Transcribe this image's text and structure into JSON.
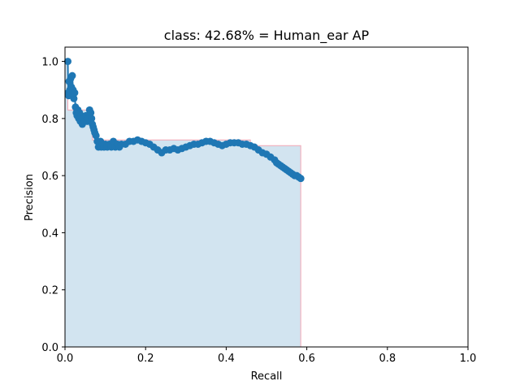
{
  "chart_data": {
    "type": "line",
    "title": "class: 42.68% = Human_ear AP",
    "xlabel": "Recall",
    "ylabel": "Precision",
    "xlim": [
      0,
      1
    ],
    "ylim": [
      0,
      1.05
    ],
    "x_ticks": [
      "0.0",
      "0.2",
      "0.4",
      "0.6",
      "0.8",
      "1.0"
    ],
    "y_ticks": [
      "0.0",
      "0.2",
      "0.4",
      "0.6",
      "0.8",
      "1.0"
    ],
    "grid": false,
    "legend": "none",
    "colors": {
      "series": "#1f77b4",
      "area_fill": "#1f77b4",
      "area_edge": "#f4a6b4",
      "frame": "#000000"
    },
    "series": [
      {
        "marker": "circle",
        "x": [
          0.007,
          0.008,
          0.009,
          0.01,
          0.012,
          0.014,
          0.016,
          0.018,
          0.02,
          0.022,
          0.024,
          0.026,
          0.028,
          0.03,
          0.032,
          0.034,
          0.036,
          0.038,
          0.04,
          0.043,
          0.046,
          0.049,
          0.052,
          0.055,
          0.058,
          0.061,
          0.064,
          0.066,
          0.068,
          0.07,
          0.072,
          0.074,
          0.077,
          0.08,
          0.083,
          0.086,
          0.088,
          0.09,
          0.093,
          0.097,
          0.1,
          0.105,
          0.11,
          0.115,
          0.12,
          0.125,
          0.13,
          0.135,
          0.14,
          0.15,
          0.16,
          0.17,
          0.18,
          0.19,
          0.2,
          0.21,
          0.22,
          0.23,
          0.24,
          0.25,
          0.26,
          0.27,
          0.28,
          0.29,
          0.3,
          0.31,
          0.32,
          0.33,
          0.34,
          0.35,
          0.36,
          0.37,
          0.38,
          0.39,
          0.4,
          0.41,
          0.42,
          0.43,
          0.44,
          0.45,
          0.46,
          0.47,
          0.48,
          0.49,
          0.5,
          0.51,
          0.52,
          0.525,
          0.53,
          0.535,
          0.54,
          0.545,
          0.55,
          0.555,
          0.56,
          0.565,
          0.57,
          0.575,
          0.58,
          0.585
        ],
        "y": [
          1.0,
          0.89,
          0.88,
          0.93,
          0.9,
          0.94,
          0.91,
          0.95,
          0.9,
          0.87,
          0.89,
          0.84,
          0.82,
          0.81,
          0.83,
          0.8,
          0.82,
          0.79,
          0.81,
          0.78,
          0.8,
          0.79,
          0.81,
          0.79,
          0.8,
          0.83,
          0.82,
          0.8,
          0.78,
          0.77,
          0.76,
          0.75,
          0.74,
          0.72,
          0.7,
          0.71,
          0.72,
          0.7,
          0.71,
          0.7,
          0.71,
          0.7,
          0.71,
          0.7,
          0.72,
          0.7,
          0.71,
          0.7,
          0.71,
          0.71,
          0.72,
          0.72,
          0.725,
          0.72,
          0.715,
          0.71,
          0.7,
          0.69,
          0.68,
          0.69,
          0.69,
          0.695,
          0.69,
          0.695,
          0.7,
          0.705,
          0.71,
          0.71,
          0.715,
          0.72,
          0.72,
          0.715,
          0.71,
          0.705,
          0.71,
          0.715,
          0.715,
          0.715,
          0.71,
          0.71,
          0.705,
          0.7,
          0.69,
          0.68,
          0.675,
          0.665,
          0.655,
          0.645,
          0.64,
          0.635,
          0.63,
          0.625,
          0.62,
          0.615,
          0.61,
          0.605,
          0.6,
          0.6,
          0.595,
          0.59
        ]
      }
    ],
    "ap_area": {
      "x": [
        0,
        0.007,
        0.007,
        0.068,
        0.068,
        0.46,
        0.46,
        0.585,
        0.585
      ],
      "y": [
        1.0,
        1.0,
        0.83,
        0.83,
        0.725,
        0.725,
        0.705,
        0.705,
        0.0
      ]
    }
  }
}
